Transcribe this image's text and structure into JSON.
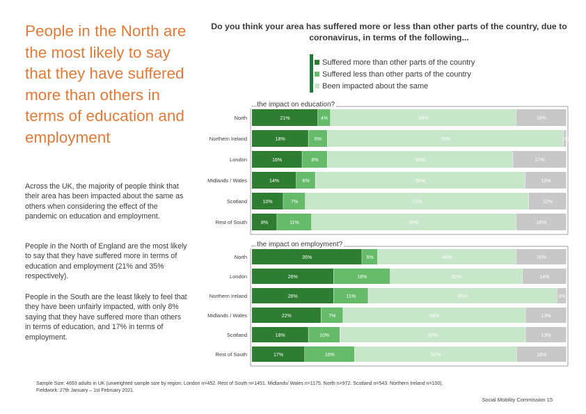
{
  "headline": "People in the North are the most likely to say that they have suffered more than others in terms of education and employment",
  "paragraphs": [
    "Across the UK, the majority of people think that their area has been impacted about the same as others when considering the effect of the pandemic on education and employment.",
    "People in the North of England are the most likely to say that they have suffered more in terms of education and employment (21% and 35% respectively).",
    "People in the South are the least likely to feel that they have been unfairly impacted, with only 8% saying that they have suffered more than others in terms of education, and 17% in terms of employment."
  ],
  "question": "Do you think your area has suffered more or less than other parts of the country, due to coronavirus, in terms of the following...",
  "legend": [
    {
      "label": "Suffered more than other parts of the country",
      "color": "#2e7d32"
    },
    {
      "label": "Suffered less than other parts of the country",
      "color": "#66bb6a"
    },
    {
      "label": "Been impacted about the same",
      "color": "#c8e6c9"
    }
  ],
  "unsure_color": "#c8c8c8",
  "chart_data": [
    {
      "type": "bar",
      "stacked": true,
      "orientation": "horizontal",
      "title": "...the impact on education?",
      "categories": [
        "North",
        "Northern Ireland",
        "London",
        "Midlands / Wales",
        "Scotland",
        "Rest of South"
      ],
      "series": [
        {
          "name": "Suffered more than other parts of the country",
          "values": [
            21,
            18,
            16,
            14,
            10,
            8
          ]
        },
        {
          "name": "Suffered less than other parts of the country",
          "values": [
            4,
            6,
            8,
            6,
            7,
            11
          ]
        },
        {
          "name": "Been impacted about the same",
          "values": [
            59,
            75,
            59,
            66,
            71,
            65
          ]
        },
        {
          "values": [
            16,
            1,
            17,
            13,
            12,
            16
          ]
        }
      ]
    },
    {
      "type": "bar",
      "stacked": true,
      "orientation": "horizontal",
      "title": "...the impact on employment?",
      "categories": [
        "North",
        "London",
        "Northern Ireland",
        "Midlands / Wales",
        "Scotland",
        "Rest of South"
      ],
      "series": [
        {
          "name": "Suffered more than other parts of the country",
          "values": [
            35,
            26,
            26,
            22,
            18,
            17
          ]
        },
        {
          "name": "Suffered less than other parts of the country",
          "values": [
            5,
            18,
            11,
            7,
            10,
            16
          ]
        },
        {
          "name": "Been impacted about the same",
          "values": [
            44,
            42,
            60,
            58,
            59,
            52
          ]
        },
        {
          "values": [
            16,
            14,
            3,
            13,
            13,
            16
          ]
        }
      ]
    }
  ],
  "footnote_line1": "Sample Size: 4693 adults in UK (unweighted sample size by region: London n=452. Rest of South n=1451. Midlands/ Wales n=1175. North n=972. Scotland n=543. Northern Ireland n=100).",
  "footnote_line2": "Fieldwork: 27th January – 1st February 2021.",
  "footer": "Social Mobility Commission  15"
}
